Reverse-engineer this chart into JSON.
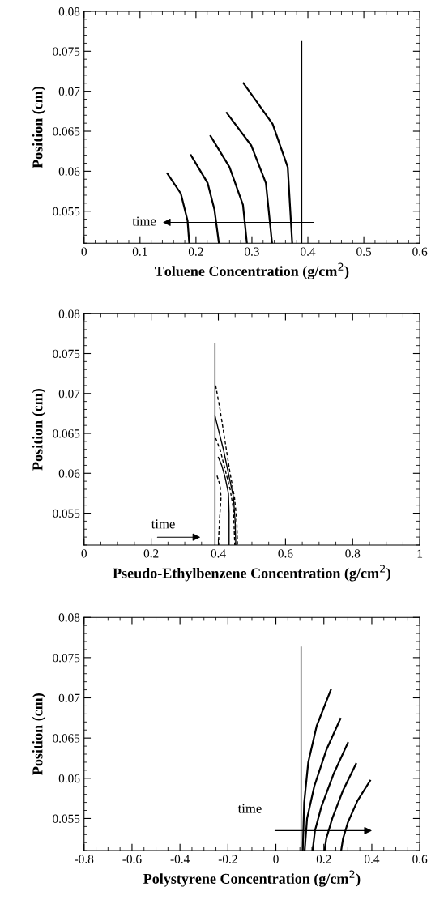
{
  "chart_data": [
    {
      "type": "line",
      "xlabel": "Toluene Concentration (g/cm$^{2}$)",
      "ylabel": "Position (cm)",
      "xlim": [
        0,
        0.6
      ],
      "xticks": [
        0,
        0.1,
        0.2,
        0.3,
        0.4,
        0.5,
        0.6
      ],
      "ylim": [
        0.051,
        0.08
      ],
      "yticks": [
        0.055,
        0.06,
        0.065,
        0.07,
        0.075,
        0.08
      ],
      "grid": false,
      "legend": false,
      "marker": "none",
      "color": "#000000",
      "annotations": [
        "time"
      ],
      "series": [
        {
          "x": [
            0.389,
            0.389
          ],
          "values": [
            0.0763,
            0.051
          ],
          "line_style": "solid"
        },
        {
          "x": [
            0.149,
            0.173,
            0.185,
            0.188
          ],
          "values": [
            0.0597,
            0.0572,
            0.0538,
            0.051
          ],
          "line_style": "solid"
        },
        {
          "x": [
            0.191,
            0.221,
            0.233,
            0.241
          ],
          "values": [
            0.062,
            0.0585,
            0.0552,
            0.051
          ],
          "line_style": "solid"
        },
        {
          "x": [
            0.226,
            0.26,
            0.284,
            0.291
          ],
          "values": [
            0.0644,
            0.0605,
            0.0558,
            0.051
          ],
          "line_style": "solid"
        },
        {
          "x": [
            0.255,
            0.299,
            0.325,
            0.336
          ],
          "values": [
            0.0673,
            0.0632,
            0.0585,
            0.051
          ],
          "line_style": "solid"
        },
        {
          "x": [
            0.285,
            0.337,
            0.364,
            0.372
          ],
          "values": [
            0.071,
            0.0659,
            0.0605,
            0.051
          ],
          "line_style": "solid"
        }
      ]
    },
    {
      "type": "line",
      "xlabel": "Pseudo-Ethylbenzene Concentration (g/cm$^{2}$)",
      "ylabel": "Position (cm)",
      "xlim": [
        0,
        1
      ],
      "xticks": [
        0,
        0.2,
        0.4,
        0.6,
        0.8,
        1
      ],
      "ylim": [
        0.051,
        0.08
      ],
      "yticks": [
        0.055,
        0.06,
        0.065,
        0.07,
        0.075,
        0.08
      ],
      "grid": false,
      "legend": false,
      "marker": "none",
      "color": "#000000",
      "annotations": [
        "time"
      ],
      "series": [
        {
          "x": [
            0.39,
            0.39
          ],
          "values": [
            0.0762,
            0.051
          ],
          "line_style": "solid"
        },
        {
          "x": [
            0.396,
            0.405,
            0.408,
            0.404,
            0.401,
            0.401
          ],
          "values": [
            0.0597,
            0.0585,
            0.057,
            0.0545,
            0.052,
            0.051
          ],
          "line_style": "dashed"
        },
        {
          "x": [
            0.4,
            0.41,
            0.42,
            0.43,
            0.432,
            0.432
          ],
          "values": [
            0.062,
            0.061,
            0.0595,
            0.0575,
            0.055,
            0.051
          ],
          "line_style": "solid"
        },
        {
          "x": [
            0.392,
            0.405,
            0.42,
            0.435,
            0.445,
            0.449
          ],
          "values": [
            0.0644,
            0.063,
            0.0605,
            0.058,
            0.0555,
            0.051
          ],
          "line_style": "dashed"
        },
        {
          "x": [
            0.39,
            0.4,
            0.415,
            0.43,
            0.445,
            0.45,
            0.452
          ],
          "values": [
            0.0672,
            0.0655,
            0.063,
            0.06,
            0.057,
            0.054,
            0.051
          ],
          "line_style": "solid"
        },
        {
          "x": [
            0.392,
            0.405,
            0.42,
            0.435,
            0.448,
            0.455,
            0.457
          ],
          "values": [
            0.071,
            0.068,
            0.064,
            0.06,
            0.057,
            0.054,
            0.051
          ],
          "line_style": "dashed"
        }
      ]
    },
    {
      "type": "line",
      "xlabel": "Polystyrene Concentration (g/cm$^{2}$)",
      "ylabel": "Position (cm)",
      "xlim": [
        -0.8,
        0.6
      ],
      "xticks": [
        -0.8,
        -0.6,
        -0.4,
        -0.2,
        0,
        0.2,
        0.4,
        0.6
      ],
      "ylim": [
        0.051,
        0.08
      ],
      "yticks": [
        0.055,
        0.06,
        0.065,
        0.07,
        0.075,
        0.08
      ],
      "grid": false,
      "legend": false,
      "marker": "none",
      "color": "#000000",
      "annotations": [
        "time"
      ],
      "series": [
        {
          "x": [
            0.105,
            0.105
          ],
          "values": [
            0.0763,
            0.051
          ],
          "line_style": "solid"
        },
        {
          "x": [
            0.229,
            0.17,
            0.135,
            0.118,
            0.112
          ],
          "values": [
            0.071,
            0.0665,
            0.062,
            0.057,
            0.051
          ],
          "line_style": "solid"
        },
        {
          "x": [
            0.269,
            0.21,
            0.16,
            0.13,
            0.12
          ],
          "values": [
            0.0674,
            0.0635,
            0.059,
            0.055,
            0.051
          ],
          "line_style": "solid"
        },
        {
          "x": [
            0.3,
            0.24,
            0.19,
            0.163,
            0.153
          ],
          "values": [
            0.0644,
            0.0605,
            0.0565,
            0.0535,
            0.051
          ],
          "line_style": "solid"
        },
        {
          "x": [
            0.334,
            0.28,
            0.235,
            0.21,
            0.203
          ],
          "values": [
            0.0618,
            0.0585,
            0.055,
            0.0525,
            0.051
          ],
          "line_style": "solid"
        },
        {
          "x": [
            0.393,
            0.34,
            0.3,
            0.28,
            0.272
          ],
          "values": [
            0.0597,
            0.0572,
            0.0545,
            0.0525,
            0.051
          ],
          "line_style": "solid"
        }
      ]
    }
  ]
}
